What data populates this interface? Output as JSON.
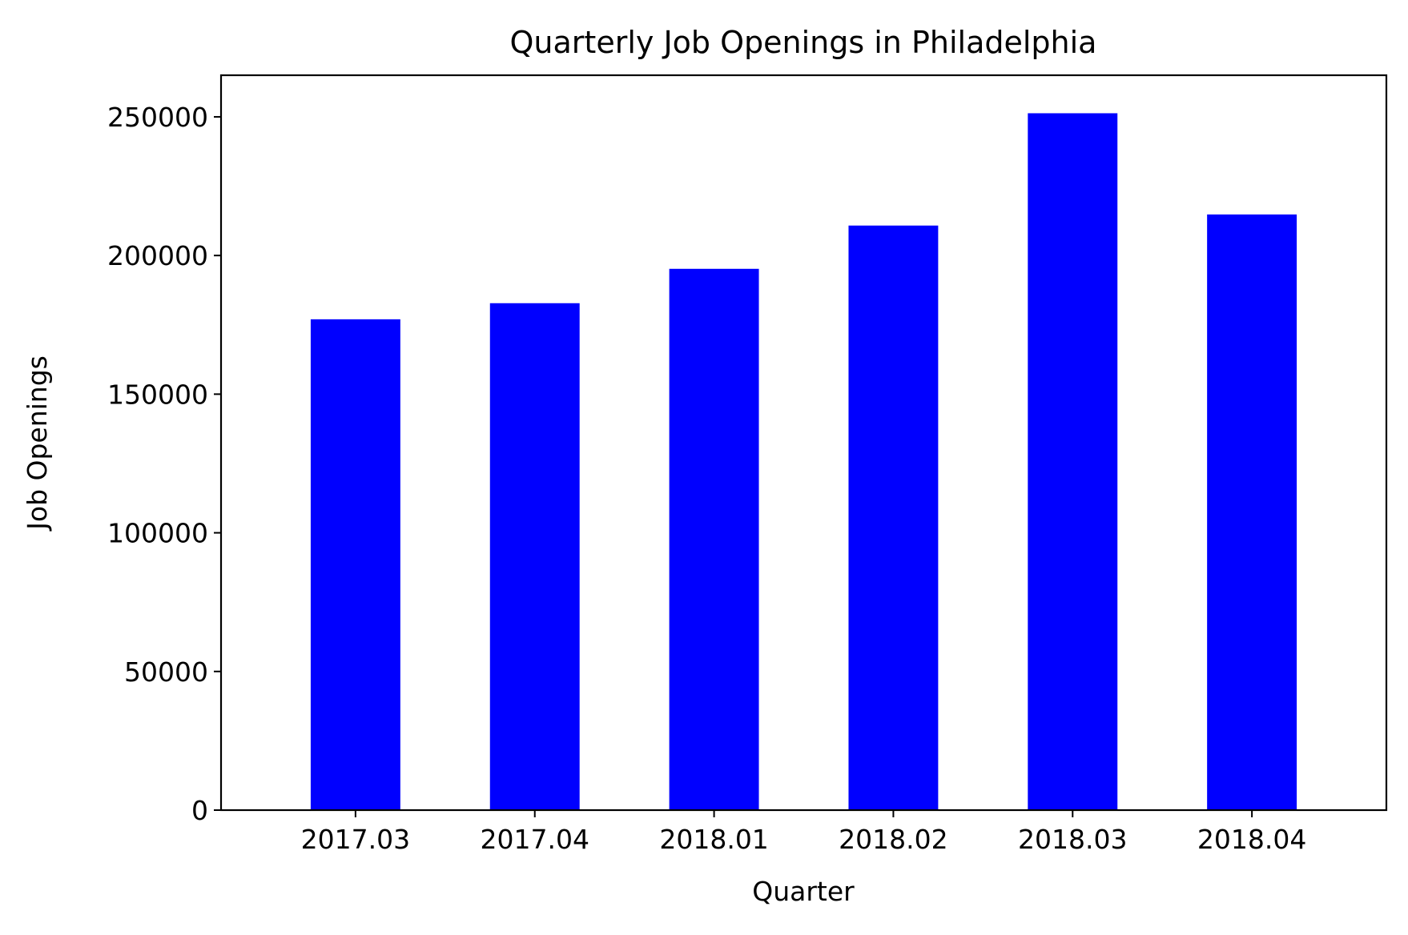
{
  "chart_data": {
    "type": "bar",
    "title": "Quarterly Job Openings in Philadelphia",
    "xlabel": "Quarter",
    "ylabel": "Job Openings",
    "categories": [
      "2017.03",
      "2017.04",
      "2018.01",
      "2018.02",
      "2018.03",
      "2018.04"
    ],
    "values": [
      177000,
      182800,
      195200,
      210800,
      251300,
      214800
    ],
    "ylim": [
      0,
      265000
    ],
    "yticks": [
      0,
      50000,
      100000,
      150000,
      200000,
      250000
    ],
    "ytick_labels": [
      "0",
      "50000",
      "100000",
      "150000",
      "200000",
      "250000"
    ],
    "bar_color": "#0000ff",
    "grid": false,
    "legend": "none"
  }
}
